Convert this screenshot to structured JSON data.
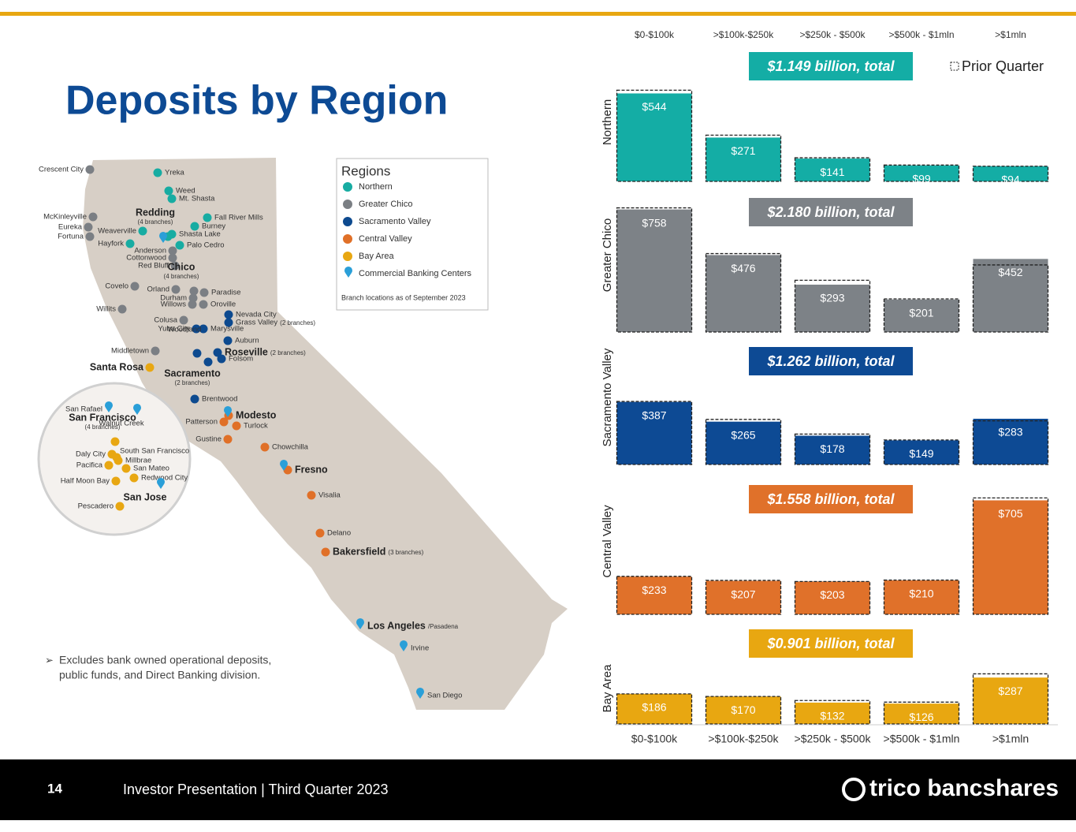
{
  "title": "Deposits by Region",
  "legend_label": "Prior Quarter",
  "footnote": [
    "Excludes bank owned operational deposits,",
    "public funds, and Direct Banking division."
  ],
  "footer": {
    "page": "14",
    "text": "Investor Presentation | Third Quarter 2023",
    "logo": "trico bancshares"
  },
  "map": {
    "legend_title": "Regions",
    "legend_note": "Branch locations as of September 2023",
    "groups": [
      {
        "name": "Northern",
        "color": "#17aca2",
        "cities": [
          {
            "name": "Yreka"
          },
          {
            "name": "Weed"
          },
          {
            "name": "Mt. Shasta"
          },
          {
            "name": "Fall River Mills"
          },
          {
            "name": "Burney"
          },
          {
            "name": "Weaverville"
          },
          {
            "name": "Shasta Lake"
          },
          {
            "name": "Palo Cedro"
          },
          {
            "name": "Hayfork"
          },
          {
            "name": "Redding",
            "note": "(4 branches)"
          }
        ]
      },
      {
        "name": "Greater Chico",
        "color": "#7b7f84",
        "cities": [
          {
            "name": "Crescent City"
          },
          {
            "name": "McKinleyville"
          },
          {
            "name": "Eureka"
          },
          {
            "name": "Fortuna"
          },
          {
            "name": "Anderson"
          },
          {
            "name": "Cottonwood"
          },
          {
            "name": "Red Bluff"
          },
          {
            "name": "Covelo"
          },
          {
            "name": "Orland"
          },
          {
            "name": "Chico",
            "note": "(4 branches)"
          },
          {
            "name": "Paradise"
          },
          {
            "name": "Durham"
          },
          {
            "name": "Willows"
          },
          {
            "name": "Oroville"
          },
          {
            "name": "Willits"
          },
          {
            "name": "Colusa"
          },
          {
            "name": "Middletown"
          }
        ]
      },
      {
        "name": "Sacramento Valley",
        "color": "#0d4a8f",
        "cities": [
          {
            "name": "Nevada City"
          },
          {
            "name": "Grass Valley",
            "note": "(2 branches)"
          },
          {
            "name": "Yuba City"
          },
          {
            "name": "Marysville"
          },
          {
            "name": "Auburn"
          },
          {
            "name": "Woodland"
          },
          {
            "name": "Roseville",
            "note": "(2 branches)"
          },
          {
            "name": "Folsom"
          },
          {
            "name": "Sacramento",
            "note": "(2 branches)"
          },
          {
            "name": "Brentwood"
          }
        ]
      },
      {
        "name": "Central Valley",
        "color": "#e07028",
        "cities": [
          {
            "name": "Modesto"
          },
          {
            "name": "Patterson"
          },
          {
            "name": "Turlock"
          },
          {
            "name": "Gustine"
          },
          {
            "name": "Chowchilla"
          },
          {
            "name": "Fresno"
          },
          {
            "name": "Visalia"
          },
          {
            "name": "Delano"
          },
          {
            "name": "Bakersfield",
            "note": "(3 branches)"
          }
        ]
      },
      {
        "name": "Bay Area",
        "color": "#e8a712",
        "cities": [
          {
            "name": "Santa Rosa"
          },
          {
            "name": "San Francisco",
            "note": "(4 branches)"
          },
          {
            "name": "Daly City"
          },
          {
            "name": "South San Francisco"
          },
          {
            "name": "Millbrae"
          },
          {
            "name": "Pacifica"
          },
          {
            "name": "San Mateo"
          },
          {
            "name": "Half Moon Bay"
          },
          {
            "name": "Redwood City"
          },
          {
            "name": "Pescadero"
          }
        ]
      },
      {
        "name": "Commercial Banking Centers",
        "color": "#2a9fd8",
        "cities": [
          {
            "name": "San Rafael"
          },
          {
            "name": "Walnut Creek"
          },
          {
            "name": "San Jose"
          },
          {
            "name": "Los Angeles",
            "note": "/Pasadena"
          },
          {
            "name": "Irvine"
          },
          {
            "name": "San Diego"
          }
        ]
      }
    ]
  },
  "chart_data": [
    {
      "type": "bar",
      "y_label": "Northern",
      "annotation": "$1.149 billion, total",
      "color": "#14ada5",
      "categories": [
        "$0-$100k",
        ">$100k-$250k",
        ">$250k - $500k",
        ">$500k - $1mln",
        ">$1mln"
      ],
      "values": [
        544,
        271,
        141,
        99,
        94
      ],
      "value_labels": [
        "$544",
        "$271",
        "$141",
        "$99",
        "$94"
      ],
      "prior_values": [
        564,
        286,
        146,
        101,
        94
      ]
    },
    {
      "type": "bar",
      "y_label": "Greater Chico",
      "annotation": "$2.180 billion, total",
      "color": "#7d8287",
      "categories": [
        "$0-$100k",
        ">$100k-$250k",
        ">$250k - $500k",
        ">$500k - $1mln",
        ">$1mln"
      ],
      "values": [
        758,
        476,
        293,
        201,
        452
      ],
      "value_labels": [
        "$758",
        "$476",
        "$293",
        "$201",
        "$452"
      ],
      "prior_values": [
        768,
        485,
        320,
        205,
        415
      ]
    },
    {
      "type": "bar",
      "y_label": "Sacramento Valley",
      "annotation": "$1.262 billion, total",
      "color": "#0d4a94",
      "categories": [
        "$0-$100k",
        ">$100k-$250k",
        ">$250k - $500k",
        ">$500k - $1mln",
        ">$1mln"
      ],
      "values": [
        387,
        265,
        178,
        149,
        283
      ],
      "value_labels": [
        "$387",
        "$265",
        "$178",
        "$149",
        "$283"
      ],
      "prior_values": [
        390,
        279,
        188,
        152,
        270
      ]
    },
    {
      "type": "bar",
      "y_label": "Central Valley",
      "annotation": "$1.558 billion, total",
      "color": "#e0712a",
      "categories": [
        "$0-$100k",
        ">$100k-$250k",
        ">$250k - $500k",
        ">$500k - $1mln",
        ">$1mln"
      ],
      "values": [
        233,
        207,
        203,
        210,
        705
      ],
      "value_labels": [
        "$233",
        "$207",
        "$203",
        "$210",
        "$705"
      ],
      "prior_values": [
        235,
        210,
        203,
        212,
        720
      ]
    },
    {
      "type": "bar",
      "y_label": "Bay Area",
      "annotation": "$0.901 billion, total",
      "color": "#e8a711",
      "categories": [
        "$0-$100k",
        ">$100k-$250k",
        ">$250k - $500k",
        ">$500k - $1mln",
        ">$1mln"
      ],
      "values": [
        186,
        170,
        132,
        126,
        287
      ],
      "value_labels": [
        "$186",
        "$170",
        "$132",
        "$126",
        "$287"
      ],
      "prior_values": [
        186,
        170,
        145,
        135,
        310
      ]
    }
  ]
}
